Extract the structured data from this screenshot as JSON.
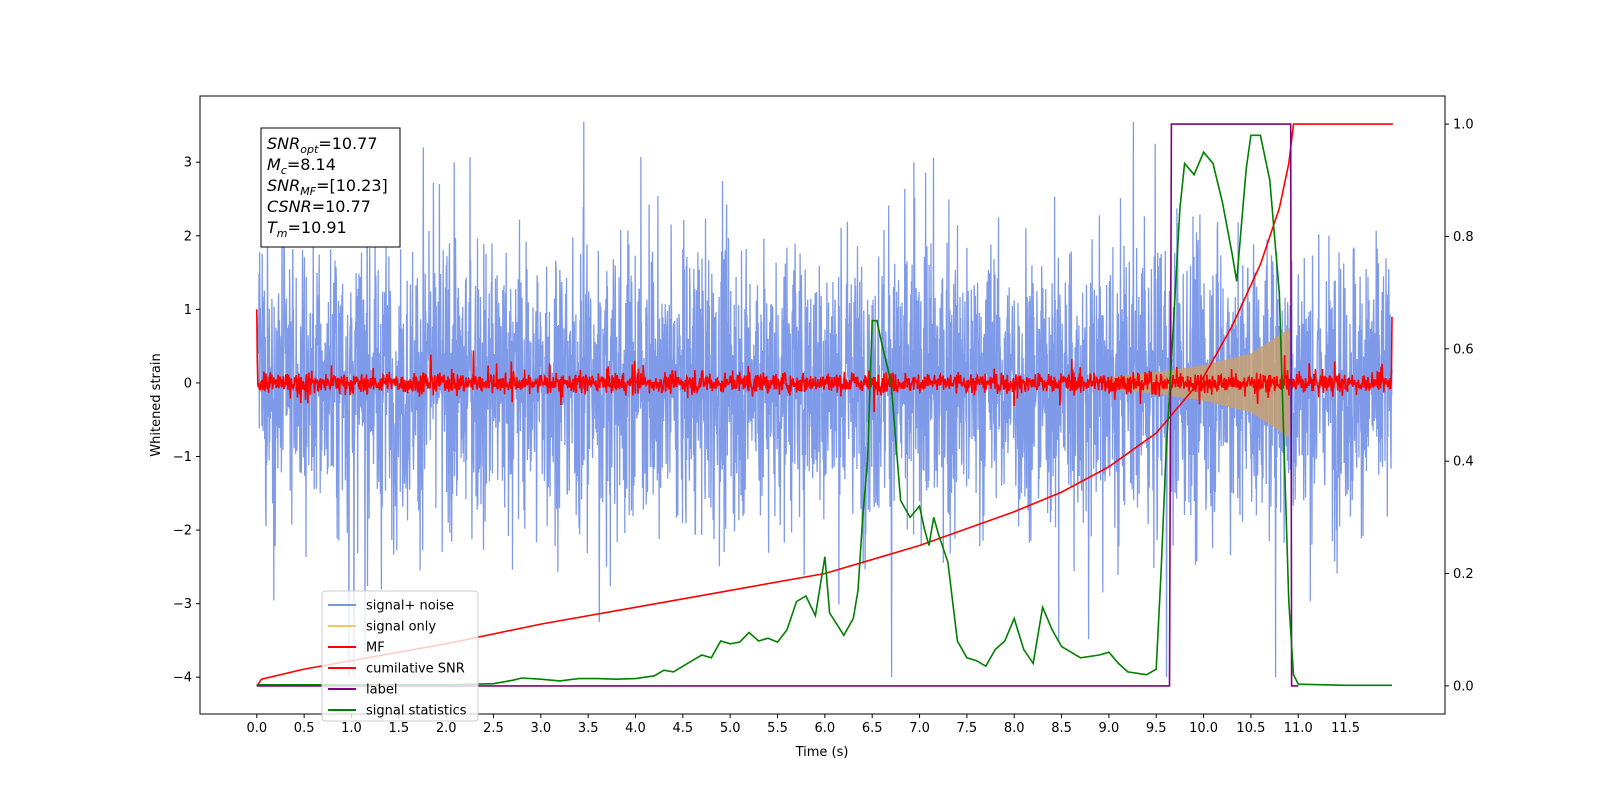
{
  "chart_data": {
    "type": "line",
    "xlabel": "Time (s)",
    "ylabel": "Whitened strain",
    "xlim": [
      -0.6,
      12.55
    ],
    "ylim": [
      -4.5,
      3.9
    ],
    "y2lim": [
      -0.05,
      1.05
    ],
    "x_ticks": [
      "0.0",
      "0.5",
      "1.0",
      "1.5",
      "2.0",
      "2.5",
      "3.0",
      "3.5",
      "4.0",
      "4.5",
      "5.0",
      "5.5",
      "6.0",
      "6.5",
      "7.0",
      "7.5",
      "8.0",
      "8.5",
      "9.0",
      "9.5",
      "10.0",
      "10.5",
      "11.0",
      "11.5"
    ],
    "y_ticks": [
      "3",
      "2",
      "1",
      "0",
      "−1",
      "−2",
      "−3",
      "−4"
    ],
    "y2_ticks": [
      "1.0",
      "0.8",
      "0.6",
      "0.4",
      "0.2",
      "0.0"
    ],
    "annotation": {
      "lines": [
        {
          "base": "SNR",
          "sub": "opt",
          "rest": "=10.77"
        },
        {
          "base": "M",
          "sub": "c",
          "rest": "=8.14"
        },
        {
          "base": "SNR",
          "sub": "MF",
          "rest": "=[10.23]"
        },
        {
          "base": "CSNR",
          "sub": "",
          "rest": "=10.77"
        },
        {
          "base": "T",
          "sub": "m",
          "rest": "=10.91"
        }
      ]
    },
    "legend": {
      "placement": "lower left",
      "entries": [
        {
          "label": "signal+ noise",
          "color": "#7895e8"
        },
        {
          "label": "signal only",
          "color": "#f5c46a"
        },
        {
          "label": "MF",
          "color": "#ff0000"
        },
        {
          "label": "cumilative SNR",
          "color": "#ff0000"
        },
        {
          "label": "label",
          "color": "#800080"
        },
        {
          "label": "signal statistics",
          "color": "#008000"
        }
      ]
    },
    "series": [
      {
        "name": "signal+ noise",
        "axis": "left",
        "color": "#7895e8",
        "x_range": [
          0.0,
          11.99
        ],
        "approx_amplitude": 2.6,
        "approx_min": -4.0,
        "approx_max": 3.55
      },
      {
        "name": "signal only",
        "axis": "left",
        "color": "#c8a070",
        "chirp_envelope": [
          [
            9.0,
            0.08
          ],
          [
            9.5,
            0.15
          ],
          [
            10.0,
            0.24
          ],
          [
            10.5,
            0.4
          ],
          [
            10.8,
            0.65
          ],
          [
            10.91,
            0.75
          ]
        ]
      },
      {
        "name": "MF",
        "axis": "left",
        "color": "#ff0000",
        "approx_band": [
          -0.12,
          0.12
        ],
        "endpoints": [
          [
            0.0,
            1.0
          ],
          [
            11.99,
            0.9
          ]
        ]
      },
      {
        "name": "cumilative SNR",
        "axis": "right",
        "color": "#ff0000",
        "points": [
          [
            0.0,
            0.0
          ],
          [
            0.05,
            0.012
          ],
          [
            0.5,
            0.03
          ],
          [
            1.0,
            0.045
          ],
          [
            2.0,
            0.075
          ],
          [
            3.0,
            0.11
          ],
          [
            4.0,
            0.14
          ],
          [
            5.0,
            0.17
          ],
          [
            6.0,
            0.2
          ],
          [
            7.0,
            0.25
          ],
          [
            8.0,
            0.31
          ],
          [
            8.5,
            0.345
          ],
          [
            9.0,
            0.39
          ],
          [
            9.5,
            0.45
          ],
          [
            10.0,
            0.55
          ],
          [
            10.3,
            0.64
          ],
          [
            10.6,
            0.75
          ],
          [
            10.8,
            0.85
          ],
          [
            10.9,
            0.93
          ],
          [
            10.95,
            1.0
          ],
          [
            12.0,
            1.0
          ]
        ]
      },
      {
        "name": "label",
        "axis": "right",
        "color": "#800080",
        "points": [
          [
            0.0,
            0.0
          ],
          [
            9.64,
            0.0
          ],
          [
            9.66,
            1.0
          ],
          [
            10.86,
            1.0
          ],
          [
            10.92,
            1.0
          ],
          [
            10.93,
            0.0
          ],
          [
            11.0,
            0.0
          ]
        ]
      },
      {
        "name": "signal statistics",
        "axis": "right",
        "color": "#008000",
        "points": [
          [
            0.0,
            0.002
          ],
          [
            0.5,
            0.002
          ],
          [
            1.0,
            0.002
          ],
          [
            1.5,
            0.002
          ],
          [
            2.0,
            0.002
          ],
          [
            2.5,
            0.004
          ],
          [
            2.7,
            0.01
          ],
          [
            2.8,
            0.014
          ],
          [
            3.0,
            0.012
          ],
          [
            3.2,
            0.009
          ],
          [
            3.4,
            0.013
          ],
          [
            3.6,
            0.013
          ],
          [
            3.8,
            0.012
          ],
          [
            4.0,
            0.013
          ],
          [
            4.2,
            0.018
          ],
          [
            4.3,
            0.028
          ],
          [
            4.4,
            0.025
          ],
          [
            4.6,
            0.045
          ],
          [
            4.7,
            0.055
          ],
          [
            4.8,
            0.05
          ],
          [
            4.9,
            0.08
          ],
          [
            5.0,
            0.075
          ],
          [
            5.1,
            0.078
          ],
          [
            5.2,
            0.095
          ],
          [
            5.3,
            0.08
          ],
          [
            5.4,
            0.085
          ],
          [
            5.5,
            0.078
          ],
          [
            5.6,
            0.1
          ],
          [
            5.7,
            0.15
          ],
          [
            5.8,
            0.16
          ],
          [
            5.9,
            0.125
          ],
          [
            6.0,
            0.23
          ],
          [
            6.05,
            0.13
          ],
          [
            6.2,
            0.09
          ],
          [
            6.3,
            0.12
          ],
          [
            6.35,
            0.17
          ],
          [
            6.4,
            0.3
          ],
          [
            6.45,
            0.4
          ],
          [
            6.5,
            0.65
          ],
          [
            6.55,
            0.65
          ],
          [
            6.6,
            0.61
          ],
          [
            6.7,
            0.54
          ],
          [
            6.8,
            0.33
          ],
          [
            6.9,
            0.3
          ],
          [
            7.0,
            0.32
          ],
          [
            7.05,
            0.28
          ],
          [
            7.1,
            0.25
          ],
          [
            7.15,
            0.3
          ],
          [
            7.2,
            0.27
          ],
          [
            7.3,
            0.22
          ],
          [
            7.4,
            0.08
          ],
          [
            7.5,
            0.05
          ],
          [
            7.6,
            0.045
          ],
          [
            7.7,
            0.035
          ],
          [
            7.8,
            0.065
          ],
          [
            7.9,
            0.08
          ],
          [
            8.0,
            0.12
          ],
          [
            8.1,
            0.065
          ],
          [
            8.2,
            0.04
          ],
          [
            8.3,
            0.14
          ],
          [
            8.4,
            0.1
          ],
          [
            8.5,
            0.07
          ],
          [
            8.7,
            0.05
          ],
          [
            8.9,
            0.055
          ],
          [
            9.0,
            0.06
          ],
          [
            9.1,
            0.04
          ],
          [
            9.2,
            0.025
          ],
          [
            9.4,
            0.02
          ],
          [
            9.5,
            0.03
          ],
          [
            9.55,
            0.2
          ],
          [
            9.6,
            0.4
          ],
          [
            9.7,
            0.7
          ],
          [
            9.75,
            0.85
          ],
          [
            9.8,
            0.93
          ],
          [
            9.9,
            0.91
          ],
          [
            10.0,
            0.95
          ],
          [
            10.1,
            0.93
          ],
          [
            10.2,
            0.86
          ],
          [
            10.3,
            0.77
          ],
          [
            10.35,
            0.72
          ],
          [
            10.4,
            0.82
          ],
          [
            10.45,
            0.92
          ],
          [
            10.5,
            0.98
          ],
          [
            10.6,
            0.98
          ],
          [
            10.7,
            0.9
          ],
          [
            10.8,
            0.7
          ],
          [
            10.9,
            0.15
          ],
          [
            10.95,
            0.02
          ],
          [
            11.0,
            0.003
          ],
          [
            11.5,
            0.001
          ],
          [
            11.99,
            0.001
          ]
        ]
      }
    ]
  }
}
